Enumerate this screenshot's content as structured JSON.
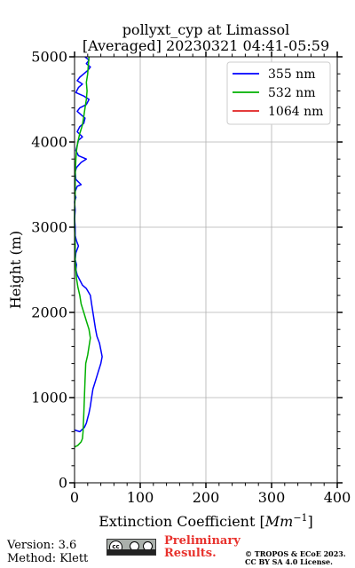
{
  "chart_data": {
    "type": "line",
    "title": "pollyxt_cyp at Limassol",
    "subtitle": "[Averaged] 20230321 04:41-05:59",
    "xlabel_text": "Extinction Coefficient [",
    "xlabel_unit": "Mm",
    "xlabel_exp": "−1",
    "xlabel_close": "]",
    "ylabel": "Height (m)",
    "xlim": [
      0,
      400
    ],
    "ylim": [
      0,
      5000
    ],
    "xticks": [
      "0",
      "100",
      "200",
      "300",
      "400"
    ],
    "yticks": [
      "0",
      "1000",
      "2000",
      "3000",
      "4000",
      "5000"
    ],
    "grid": true,
    "legend_position": "top-right",
    "series": [
      {
        "name": "355 nm",
        "color": "#0000ff",
        "points": [
          [
            0,
            620
          ],
          [
            8,
            600
          ],
          [
            15,
            650
          ],
          [
            18,
            700
          ],
          [
            20,
            760
          ],
          [
            22,
            820
          ],
          [
            24,
            900
          ],
          [
            26,
            1000
          ],
          [
            28,
            1100
          ],
          [
            32,
            1200
          ],
          [
            36,
            1300
          ],
          [
            40,
            1400
          ],
          [
            42,
            1480
          ],
          [
            40,
            1560
          ],
          [
            38,
            1640
          ],
          [
            34,
            1720
          ],
          [
            32,
            1800
          ],
          [
            30,
            1900
          ],
          [
            28,
            2000
          ],
          [
            26,
            2100
          ],
          [
            24,
            2200
          ],
          [
            18,
            2280
          ],
          [
            12,
            2320
          ],
          [
            8,
            2380
          ],
          [
            4,
            2440
          ],
          [
            2,
            2500
          ],
          [
            3,
            2560
          ],
          [
            1,
            2620
          ],
          [
            2,
            2700
          ],
          [
            6,
            2780
          ],
          [
            3,
            2840
          ],
          [
            1,
            2900
          ],
          [
            1,
            3000
          ],
          [
            0,
            3100
          ],
          [
            1,
            3200
          ],
          [
            0,
            3300
          ],
          [
            2,
            3350
          ],
          [
            0,
            3400
          ],
          [
            4,
            3480
          ],
          [
            10,
            3500
          ],
          [
            2,
            3560
          ],
          [
            1,
            3650
          ],
          [
            3,
            3700
          ],
          [
            10,
            3760
          ],
          [
            18,
            3800
          ],
          [
            6,
            3840
          ],
          [
            2,
            3900
          ],
          [
            4,
            3960
          ],
          [
            6,
            4020
          ],
          [
            12,
            4060
          ],
          [
            4,
            4120
          ],
          [
            8,
            4180
          ],
          [
            14,
            4220
          ],
          [
            16,
            4280
          ],
          [
            10,
            4320
          ],
          [
            4,
            4360
          ],
          [
            8,
            4400
          ],
          [
            18,
            4440
          ],
          [
            22,
            4500
          ],
          [
            14,
            4540
          ],
          [
            2,
            4580
          ],
          [
            6,
            4640
          ],
          [
            12,
            4680
          ],
          [
            4,
            4720
          ],
          [
            8,
            4760
          ],
          [
            14,
            4800
          ],
          [
            20,
            4840
          ],
          [
            24,
            4880
          ],
          [
            18,
            4920
          ],
          [
            22,
            4960
          ],
          [
            16,
            5000
          ]
        ]
      },
      {
        "name": "532 nm",
        "color": "#00b000",
        "points": [
          [
            0,
            420
          ],
          [
            5,
            440
          ],
          [
            10,
            480
          ],
          [
            12,
            520
          ],
          [
            13,
            600
          ],
          [
            14,
            800
          ],
          [
            15,
            1000
          ],
          [
            16,
            1200
          ],
          [
            17,
            1400
          ],
          [
            20,
            1500
          ],
          [
            22,
            1600
          ],
          [
            24,
            1700
          ],
          [
            22,
            1800
          ],
          [
            18,
            1900
          ],
          [
            14,
            2000
          ],
          [
            10,
            2100
          ],
          [
            8,
            2200
          ],
          [
            5,
            2300
          ],
          [
            3,
            2400
          ],
          [
            2,
            2500
          ],
          [
            1,
            2600
          ],
          [
            1,
            2800
          ],
          [
            0,
            3000
          ],
          [
            0,
            3200
          ],
          [
            1,
            3400
          ],
          [
            1,
            3600
          ],
          [
            2,
            3800
          ],
          [
            3,
            3900
          ],
          [
            5,
            4000
          ],
          [
            8,
            4100
          ],
          [
            12,
            4200
          ],
          [
            14,
            4300
          ],
          [
            16,
            4400
          ],
          [
            18,
            4500
          ],
          [
            19,
            4600
          ],
          [
            18,
            4700
          ],
          [
            20,
            4800
          ],
          [
            21,
            4900
          ],
          [
            22,
            5000
          ]
        ]
      },
      {
        "name": "1064 nm",
        "color": "#e02020",
        "points": []
      }
    ]
  },
  "footer": {
    "version": "Version: 3.6",
    "method": "Method: Klett",
    "license_badge": "cc",
    "preliminary_line1": "Preliminary",
    "preliminary_line2": "Results.",
    "copyright_line1": "© TROPOS & ECoE 2023.",
    "copyright_line2": "CC BY SA 4.0 License."
  }
}
